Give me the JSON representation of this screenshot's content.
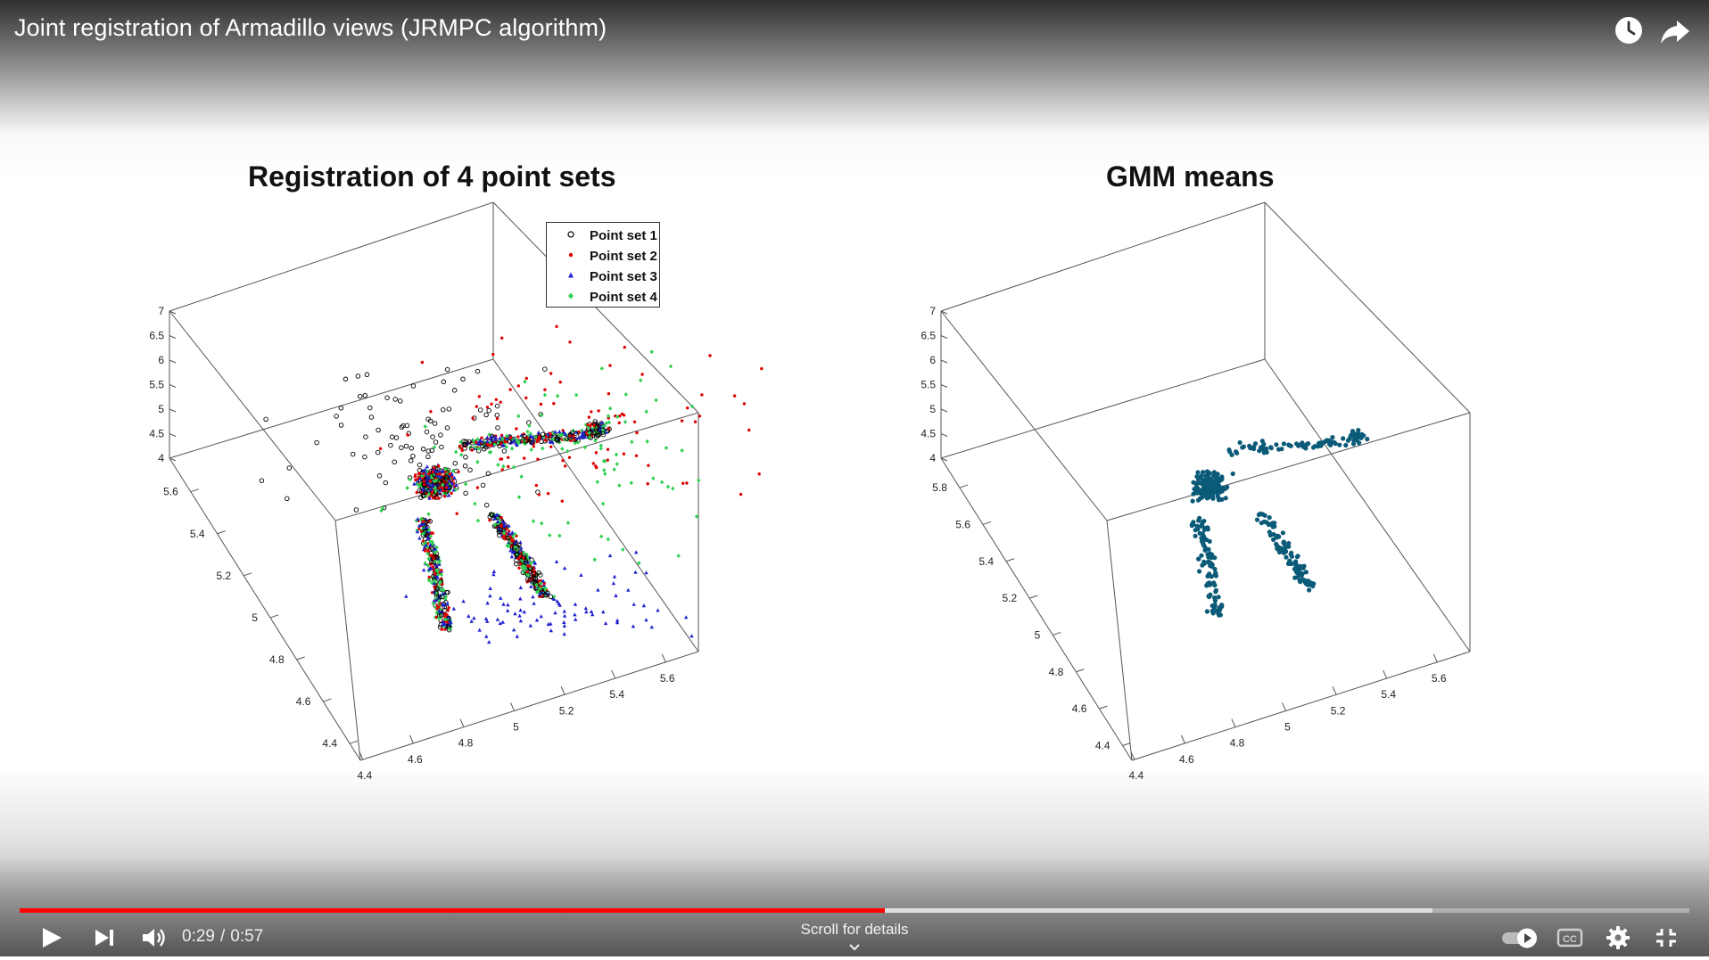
{
  "window": {
    "title": "Joint registration of Armadillo views (JRMPC algorithm)"
  },
  "top_actions": [
    {
      "name": "watch-later-button",
      "icon": "clock-icon"
    },
    {
      "name": "share-button",
      "icon": "share-arrow-icon"
    }
  ],
  "colors": {
    "progress_played": "#ff0000",
    "point_set_1": "#000000",
    "point_set_2": "#e00000",
    "point_set_3": "#2020d0",
    "point_set_4": "#30d050",
    "gmm_means": "#0a5a78"
  },
  "chart_data": [
    {
      "type": "scatter",
      "projection": "3d",
      "title": "Registration of 4 point sets",
      "x_ticks": [
        "4.4",
        "4.6",
        "4.8",
        "5",
        "5.2",
        "5.4",
        "5.6"
      ],
      "y_ticks": [
        "4.4",
        "4.6",
        "4.8",
        "5",
        "5.2",
        "5.4",
        "5.6"
      ],
      "z_ticks": [
        "4",
        "4.5",
        "5",
        "5.5",
        "6",
        "6.5",
        "7"
      ],
      "xlim": [
        4.4,
        5.7
      ],
      "ylim": [
        4.3,
        5.7
      ],
      "zlim": [
        4,
        7
      ],
      "legend": {
        "position": "top-right",
        "entries": [
          {
            "label": "Point set 1",
            "marker": "circle",
            "color": "#000000"
          },
          {
            "label": "Point set 2",
            "marker": "dot",
            "color": "#e00000"
          },
          {
            "label": "Point set 3",
            "marker": "triangle",
            "color": "#2020d0"
          },
          {
            "label": "Point set 4",
            "marker": "diamond",
            "color": "#30d050"
          }
        ]
      },
      "series": [
        {
          "name": "Point set 1",
          "shape": "armadillo point cloud with scattered outliers"
        },
        {
          "name": "Point set 2",
          "shape": "armadillo point cloud with scattered outliers"
        },
        {
          "name": "Point set 3",
          "shape": "armadillo point cloud with scattered outliers"
        },
        {
          "name": "Point set 4",
          "shape": "armadillo point cloud with scattered outliers"
        }
      ],
      "grid": false
    },
    {
      "type": "scatter",
      "projection": "3d",
      "title": "GMM means",
      "x_ticks": [
        "4.4",
        "4.6",
        "4.8",
        "5",
        "5.2",
        "5.4",
        "5.6"
      ],
      "y_ticks": [
        "4.4",
        "4.6",
        "4.8",
        "5",
        "5.2",
        "5.4",
        "5.6",
        "5.8"
      ],
      "z_ticks": [
        "4",
        "4.5",
        "5",
        "5.5",
        "6",
        "6.5",
        "7"
      ],
      "xlim": [
        4.4,
        5.7
      ],
      "ylim": [
        4.3,
        5.8
      ],
      "zlim": [
        4,
        7
      ],
      "series": [
        {
          "shape": "armadillo silhouette of GMM means"
        }
      ],
      "grid": false
    }
  ],
  "player": {
    "current_time": "0:29",
    "duration": "0:57",
    "separator": "/",
    "played_fraction": 0.518,
    "loaded_fraction": 0.846,
    "scroll_hint": "Scroll for details",
    "controls": [
      {
        "name": "play-button",
        "icon": "play-icon"
      },
      {
        "name": "next-button",
        "icon": "skip-next-icon"
      },
      {
        "name": "volume-button",
        "icon": "volume-icon"
      },
      {
        "name": "autoplay-toggle",
        "icon": "autoplay-toggle-icon",
        "state": "on"
      },
      {
        "name": "captions-button",
        "icon": "cc-icon"
      },
      {
        "name": "settings-button",
        "icon": "gear-icon"
      },
      {
        "name": "exit-fullscreen-button",
        "icon": "exit-fullscreen-icon"
      }
    ]
  }
}
